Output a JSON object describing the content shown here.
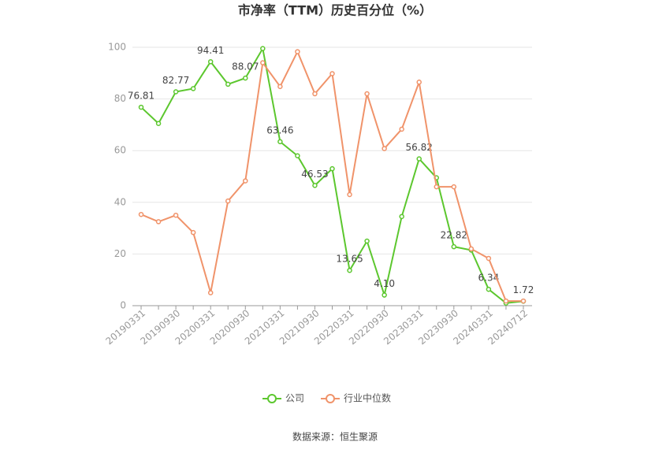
{
  "chart_data": {
    "type": "line",
    "title": "市净率（TTM）历史百分位（%）",
    "categories": [
      "20190331",
      null,
      "20190930",
      null,
      "20200331",
      null,
      "20200930",
      null,
      "20210331",
      null,
      "20210930",
      null,
      "20220331",
      null,
      "20220930",
      null,
      "20230331",
      null,
      "20230930",
      null,
      "20240331",
      null,
      "20240712"
    ],
    "series": [
      {
        "name": "公司",
        "color": "#5cc72e",
        "values": [
          76.81,
          70.5,
          82.77,
          84,
          94.41,
          85.7,
          88.07,
          99.5,
          63.46,
          58,
          46.53,
          53,
          13.65,
          25,
          4.1,
          34.5,
          56.82,
          49.5,
          22.82,
          21.5,
          6.34,
          1.0,
          1.72
        ],
        "value_labels": [
          "76.81",
          null,
          "82.77",
          null,
          "94.41",
          null,
          "88.07",
          null,
          "63.46",
          null,
          "46.53",
          null,
          "13.65",
          null,
          "4.10",
          null,
          "56.82",
          null,
          "22.82",
          null,
          "6.34",
          null,
          "1.72"
        ]
      },
      {
        "name": "行业中位数",
        "color": "#f0936a",
        "values": [
          35.3,
          32.5,
          35,
          28.3,
          5,
          40.5,
          48.3,
          94,
          84.8,
          98.3,
          82,
          89.8,
          43,
          82,
          60.8,
          68.3,
          86.5,
          46,
          46,
          22,
          18.3,
          1.8,
          1.8
        ]
      }
    ],
    "ylim": [
      0,
      100
    ],
    "yticks": [
      0,
      20,
      40,
      60,
      80,
      100
    ],
    "grid": true,
    "legend": "bottom",
    "source": "数据来源：恒生聚源"
  }
}
